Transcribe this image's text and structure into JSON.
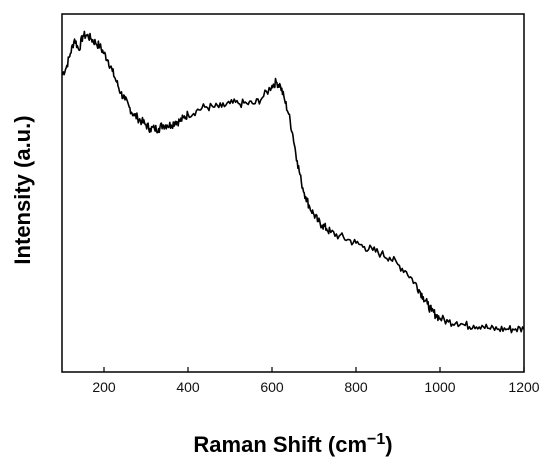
{
  "chart_data": {
    "type": "line",
    "title": "",
    "xlabel": "Raman Shift",
    "xlabel_unit_base": "(cm",
    "xlabel_unit_sup": "−1",
    "xlabel_unit_close": ")",
    "ylabel": "Intensity (a.u.)",
    "xlim": [
      100,
      1200
    ],
    "ylim": [
      0,
      1
    ],
    "x_ticks": [
      200,
      400,
      600,
      800,
      1000,
      1200
    ],
    "x_tick_labels": [
      "200",
      "400",
      "600",
      "800",
      "1000",
      "1200"
    ],
    "y_tick_labels_shown": false,
    "grid": false,
    "line_color": "#000000",
    "series": [
      {
        "x": [
          100,
          110,
          120,
          130,
          140,
          150,
          160,
          170,
          180,
          190,
          200,
          210,
          220,
          230,
          240,
          250,
          260,
          270,
          280,
          290,
          300,
          310,
          320,
          330,
          340,
          350,
          360,
          370,
          380,
          390,
          400,
          420,
          440,
          460,
          480,
          500,
          520,
          540,
          560,
          580,
          600,
          610,
          620,
          630,
          640,
          650,
          660,
          670,
          680,
          690,
          700,
          710,
          720,
          730,
          740,
          760,
          780,
          800,
          820,
          840,
          860,
          880,
          900,
          920,
          940,
          950,
          960,
          970,
          980,
          990,
          1000,
          1020,
          1040,
          1060,
          1080,
          1100,
          1120,
          1140,
          1160,
          1180,
          1200
        ],
        "y": [
          0.83,
          0.85,
          0.89,
          0.93,
          0.9,
          0.94,
          0.94,
          0.93,
          0.92,
          0.91,
          0.89,
          0.87,
          0.84,
          0.81,
          0.78,
          0.76,
          0.74,
          0.72,
          0.71,
          0.7,
          0.69,
          0.68,
          0.68,
          0.68,
          0.69,
          0.69,
          0.69,
          0.7,
          0.7,
          0.71,
          0.72,
          0.73,
          0.74,
          0.74,
          0.74,
          0.75,
          0.75,
          0.75,
          0.75,
          0.77,
          0.8,
          0.81,
          0.8,
          0.76,
          0.72,
          0.66,
          0.59,
          0.53,
          0.49,
          0.46,
          0.44,
          0.42,
          0.41,
          0.4,
          0.39,
          0.38,
          0.37,
          0.36,
          0.35,
          0.34,
          0.33,
          0.32,
          0.3,
          0.28,
          0.25,
          0.23,
          0.21,
          0.19,
          0.17,
          0.16,
          0.15,
          0.14,
          0.14,
          0.13,
          0.13,
          0.13,
          0.12,
          0.12,
          0.12,
          0.12,
          0.12
        ]
      }
    ]
  }
}
